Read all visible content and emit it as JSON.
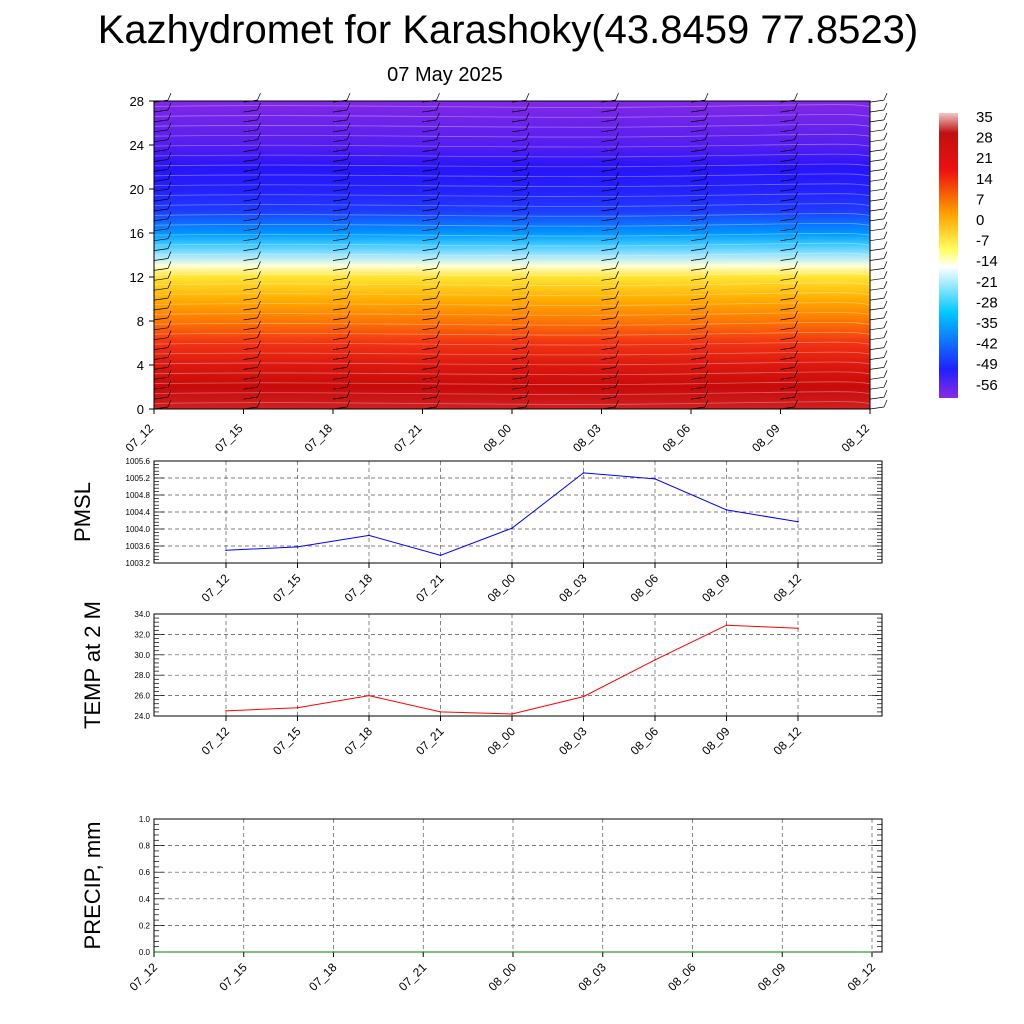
{
  "title": "Kazhydromet for Karashoky(43.8459 77.8523)",
  "date": "07 May 2025",
  "chart_data": [
    {
      "type": "heatmap",
      "ylim": [
        0,
        28
      ],
      "y_ticks": [
        "0",
        "4",
        "8",
        "12",
        "16",
        "20",
        "24",
        "28"
      ],
      "x_ticks": [
        "07_12",
        "07_15",
        "07_18",
        "07_21",
        "08_00",
        "08_03",
        "08_06",
        "08_09",
        "08_12"
      ],
      "colorbar_labels": [
        "35",
        "28",
        "21",
        "14",
        "7",
        "0",
        "-7",
        "-14",
        "-21",
        "-28",
        "-35",
        "-42",
        "-49",
        "-56"
      ],
      "temperature_profile": [
        {
          "height": 0,
          "value": 30
        },
        {
          "height": 2,
          "value": 26
        },
        {
          "height": 4,
          "value": 21
        },
        {
          "height": 6,
          "value": 15
        },
        {
          "height": 8,
          "value": 9
        },
        {
          "height": 10,
          "value": 3
        },
        {
          "height": 12,
          "value": -4
        },
        {
          "height": 13,
          "value": -11
        },
        {
          "height": 14,
          "value": -22
        },
        {
          "height": 15,
          "value": -30
        },
        {
          "height": 16,
          "value": -38
        },
        {
          "height": 18,
          "value": -48
        },
        {
          "height": 20,
          "value": -55
        },
        {
          "height": 22,
          "value": -58
        },
        {
          "height": 24,
          "value": -62
        },
        {
          "height": 28,
          "value": -66
        }
      ]
    },
    {
      "type": "line",
      "ylabel": "PMSL",
      "ylim": [
        1003.2,
        1005.6
      ],
      "y_ticks": [
        "1003.2",
        "1003.6",
        "1004.0",
        "1004.4",
        "1004.8",
        "1005.2",
        "1005.6"
      ],
      "categories": [
        "07_12",
        "07_15",
        "07_18",
        "07_21",
        "08_00",
        "08_03",
        "08_06",
        "08_09",
        "08_12"
      ],
      "values": [
        1003.5,
        1003.58,
        1003.85,
        1003.38,
        1004.02,
        1005.32,
        1005.18,
        1004.45,
        1004.17
      ],
      "color": "#0000ff"
    },
    {
      "type": "line",
      "ylabel": "TEMP at 2 M",
      "ylim": [
        24.0,
        34.0
      ],
      "y_ticks": [
        "24.0",
        "26.0",
        "28.0",
        "30.0",
        "32.0",
        "34.0"
      ],
      "categories": [
        "07_12",
        "07_15",
        "07_18",
        "07_21",
        "08_00",
        "08_03",
        "08_06",
        "08_09",
        "08_12"
      ],
      "values": [
        24.5,
        24.8,
        26.0,
        24.4,
        24.2,
        25.9,
        29.5,
        32.9,
        32.6
      ],
      "color": "#ff0000"
    },
    {
      "type": "line",
      "ylabel": "PRECIP, mm",
      "ylim": [
        0.0,
        1.0
      ],
      "y_ticks": [
        "0.0",
        "0.2",
        "0.4",
        "0.6",
        "0.8",
        "1.0"
      ],
      "categories": [
        "07_12",
        "07_15",
        "07_18",
        "07_21",
        "08_00",
        "08_03",
        "08_06",
        "08_09",
        "08_12"
      ],
      "values": [
        0,
        0,
        0,
        0,
        0,
        0,
        0,
        0,
        0
      ],
      "color": "#008000"
    }
  ]
}
